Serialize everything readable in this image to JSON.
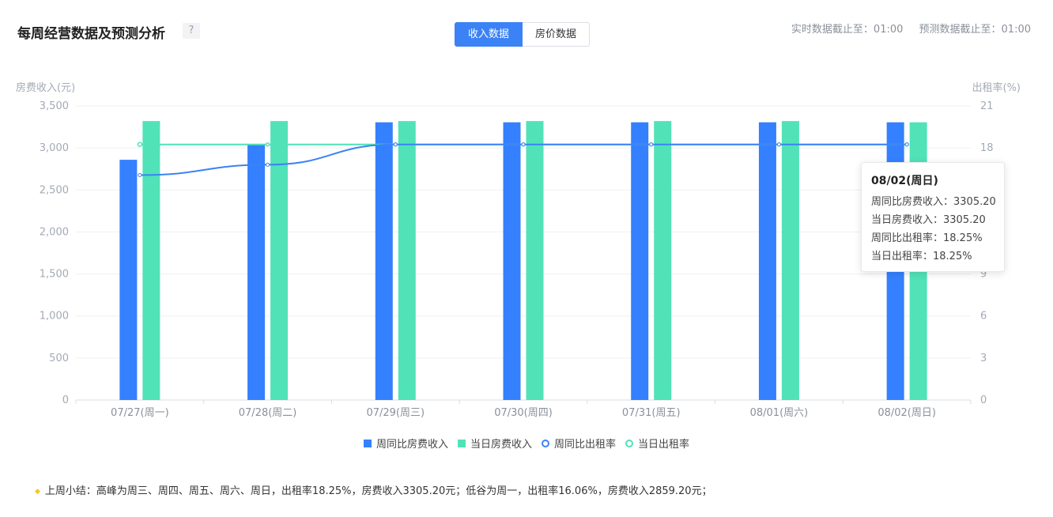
{
  "header": {
    "title": "每周经营数据及预测分析",
    "help_label": "?",
    "tabs": [
      {
        "label": "收入数据",
        "active": true
      },
      {
        "label": "房价数据",
        "active": false
      }
    ],
    "realtime_cutoff": "实时数据截止至：01:00",
    "forecast_cutoff": "预测数据截止至：01:00"
  },
  "chart_data": {
    "type": "bar",
    "categories": [
      "07/27(周一)",
      "07/28(周二)",
      "07/29(周三)",
      "07/30(周四)",
      "07/31(周五)",
      "08/01(周六)",
      "08/02(周日)"
    ],
    "ylabel_left": "房费收入(元)",
    "ylabel_right": "出租率(%)",
    "ylim_left": [
      0,
      3500
    ],
    "ylim_right": [
      0,
      21
    ],
    "yticks_left": [
      "0",
      "500",
      "1,000",
      "1,500",
      "2,000",
      "2,500",
      "3,000",
      "3,500"
    ],
    "yticks_right": [
      "0",
      "3",
      "6",
      "9",
      "12",
      "15",
      "18",
      "21"
    ],
    "grid": true,
    "series": [
      {
        "name": "周同比房费收入",
        "type": "bar",
        "axis": "left",
        "color": "#3480fe",
        "values": [
          2859.2,
          3035,
          3305.2,
          3305.2,
          3305.2,
          3305.2,
          3305.2
        ]
      },
      {
        "name": "当日房费收入",
        "type": "bar",
        "axis": "left",
        "color": "#51e2b8",
        "values": [
          3320,
          3320,
          3320,
          3320,
          3320,
          3320,
          3305.2
        ]
      },
      {
        "name": "周同比出租率",
        "type": "line",
        "axis": "right",
        "color": "#3b82f6",
        "values": [
          16.06,
          16.8,
          18.25,
          18.25,
          18.25,
          18.25,
          18.25
        ]
      },
      {
        "name": "当日出租率",
        "type": "line",
        "axis": "right",
        "color": "#51e2b8",
        "values": [
          18.25,
          18.25,
          18.25,
          18.25,
          18.25,
          18.25,
          18.25
        ]
      }
    ],
    "legend_position": "bottom"
  },
  "tooltip": {
    "title": "08/02(周日)",
    "rows": [
      "周同比房费收入：3305.20",
      "当日房费收入：3305.20",
      "周同比出租率：18.25%",
      "当日出租率：18.25%"
    ]
  },
  "summary": "上周小结：高峰为周三、周四、周五、周六、周日，出租率18.25%，房费收入3305.20元；低谷为周一，出租率16.06%，房费收入2859.20元；"
}
